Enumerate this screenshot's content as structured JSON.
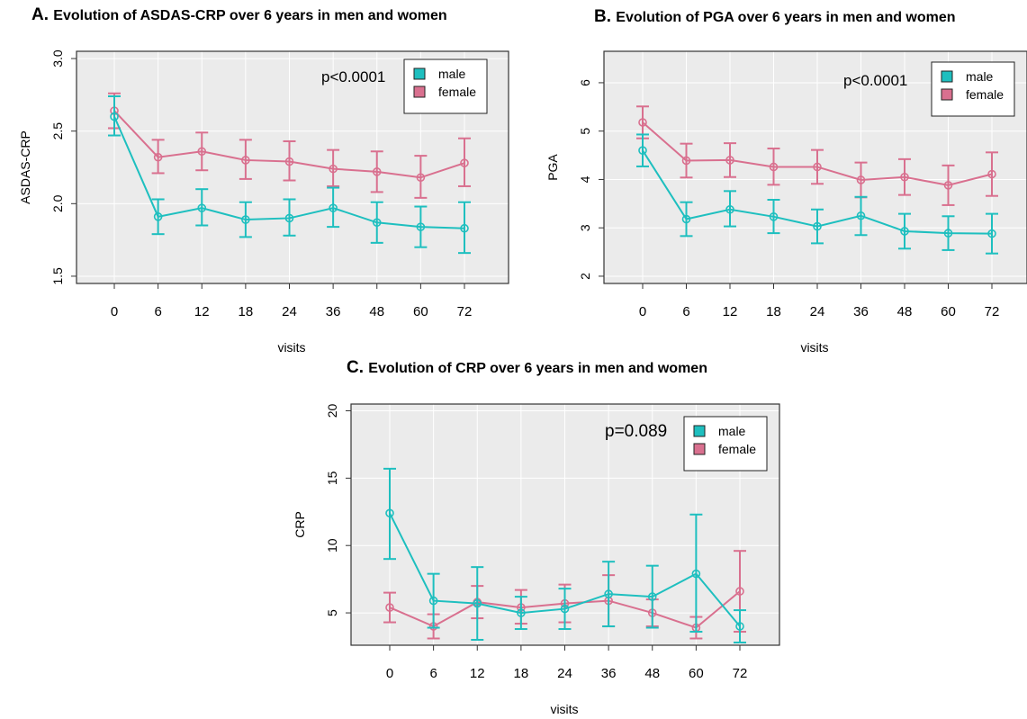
{
  "legend_labels": [
    "male",
    "female"
  ],
  "colors": {
    "male": "#1ebfbf",
    "female": "#d9708f",
    "panel_bg": "#ebebeb",
    "grid": "#ffffff",
    "frame": "#333333"
  },
  "chart_data": [
    {
      "type": "line",
      "panel_letter": "A.",
      "title": "Evolution of ASDAS-CRP over 6 years in men and women",
      "xlabel": "visits",
      "ylabel": "ASDAS-CRP",
      "categories": [
        "0",
        "6",
        "12",
        "18",
        "24",
        "36",
        "48",
        "60",
        "72"
      ],
      "ylim": [
        1.45,
        3.05
      ],
      "yticks": [
        "1.5",
        "2.0",
        "2.5",
        "3.0"
      ],
      "y_tick_rotation": "vertical",
      "annotation": "p<0.0001",
      "legend_position": "top-right",
      "grid": true,
      "series": [
        {
          "name": "male",
          "values": [
            2.6,
            1.91,
            1.97,
            1.89,
            1.9,
            1.97,
            1.87,
            1.84,
            1.83
          ],
          "lower": [
            2.47,
            1.79,
            1.85,
            1.77,
            1.78,
            1.84,
            1.73,
            1.7,
            1.66
          ],
          "upper": [
            2.74,
            2.03,
            2.1,
            2.01,
            2.03,
            2.11,
            2.01,
            1.98,
            2.01
          ]
        },
        {
          "name": "female",
          "values": [
            2.64,
            2.32,
            2.36,
            2.3,
            2.29,
            2.24,
            2.22,
            2.18,
            2.28
          ],
          "lower": [
            2.52,
            2.21,
            2.23,
            2.17,
            2.16,
            2.12,
            2.08,
            2.04,
            2.12
          ],
          "upper": [
            2.76,
            2.44,
            2.49,
            2.44,
            2.43,
            2.37,
            2.36,
            2.33,
            2.45
          ]
        }
      ]
    },
    {
      "type": "line",
      "panel_letter": "B.",
      "title": "Evolution of PGA over 6 years in men and women",
      "xlabel": "visits",
      "ylabel": "PGA",
      "categories": [
        "0",
        "6",
        "12",
        "18",
        "24",
        "36",
        "48",
        "60",
        "72"
      ],
      "ylim": [
        1.85,
        6.65
      ],
      "yticks": [
        "2",
        "3",
        "4",
        "5",
        "6"
      ],
      "y_tick_rotation": "vertical",
      "annotation": "p<0.0001",
      "legend_position": "top-right",
      "grid": true,
      "series": [
        {
          "name": "male",
          "values": [
            4.6,
            3.18,
            3.38,
            3.23,
            3.03,
            3.25,
            2.93,
            2.89,
            2.88
          ],
          "lower": [
            4.27,
            2.83,
            3.03,
            2.89,
            2.68,
            2.85,
            2.57,
            2.54,
            2.47
          ],
          "upper": [
            4.93,
            3.53,
            3.76,
            3.58,
            3.38,
            3.64,
            3.29,
            3.24,
            3.29
          ]
        },
        {
          "name": "female",
          "values": [
            5.18,
            4.39,
            4.4,
            4.26,
            4.26,
            3.99,
            4.05,
            3.88,
            4.11
          ],
          "lower": [
            4.85,
            4.04,
            4.05,
            3.89,
            3.91,
            3.63,
            3.68,
            3.47,
            3.66
          ],
          "upper": [
            5.51,
            4.74,
            4.75,
            4.64,
            4.61,
            4.35,
            4.42,
            4.29,
            4.56
          ]
        }
      ]
    },
    {
      "type": "line",
      "panel_letter": "C.",
      "title": "Evolution of CRP over 6 years in men and women",
      "xlabel": "visits",
      "ylabel": "CRP",
      "categories": [
        "0",
        "6",
        "12",
        "18",
        "24",
        "36",
        "48",
        "60",
        "72"
      ],
      "ylim": [
        2.6,
        20.5
      ],
      "yticks": [
        "5",
        "10",
        "15",
        "20"
      ],
      "y_tick_rotation": "vertical",
      "annotation": "p=0.089",
      "legend_position": "top-right",
      "grid": true,
      "series": [
        {
          "name": "male",
          "values": [
            12.4,
            5.9,
            5.7,
            5.0,
            5.3,
            6.4,
            6.2,
            7.9,
            4.0
          ],
          "lower": [
            9.0,
            3.9,
            3.0,
            3.8,
            3.8,
            4.0,
            3.9,
            3.6,
            2.8
          ],
          "upper": [
            15.7,
            7.9,
            8.4,
            6.2,
            6.8,
            8.8,
            8.5,
            12.3,
            5.2
          ]
        },
        {
          "name": "female",
          "values": [
            5.4,
            4.0,
            5.8,
            5.4,
            5.7,
            5.9,
            5.0,
            3.9,
            6.6
          ],
          "lower": [
            4.3,
            3.1,
            4.6,
            4.2,
            4.3,
            4.0,
            4.0,
            3.1,
            3.6
          ],
          "upper": [
            6.5,
            4.9,
            7.0,
            6.7,
            7.1,
            7.8,
            6.0,
            4.7,
            9.6
          ]
        }
      ]
    }
  ]
}
